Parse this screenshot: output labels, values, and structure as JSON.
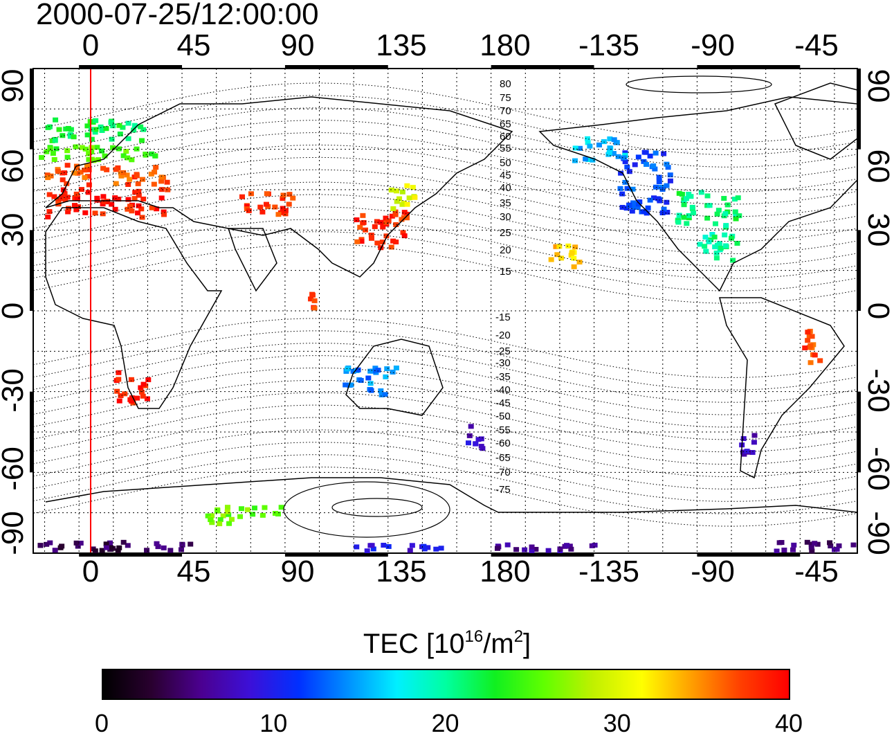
{
  "title": "2000-07-25/12:00:00",
  "top_longitude_ticks": [
    "0",
    "45",
    "90",
    "135",
    "180",
    "-135",
    "-90",
    "-45"
  ],
  "bottom_longitude_ticks": [
    "0",
    "45",
    "90",
    "135",
    "180",
    "-135",
    "-90",
    "-45"
  ],
  "latitude_ticks": [
    "90",
    "60",
    "30",
    "0",
    "-30",
    "-60",
    "-90"
  ],
  "contour_labels": [
    "80",
    "75",
    "70",
    "65",
    "60",
    "55",
    "50",
    "45",
    "40",
    "35",
    "30",
    "25",
    "20",
    "15",
    "-15",
    "-20",
    "-25",
    "-30",
    "-35",
    "-40",
    "-45",
    "-50",
    "-55",
    "-60",
    "-65",
    "-70",
    "-75"
  ],
  "colorbar": {
    "label_prefix": "TEC  [10",
    "label_exp1": "16",
    "label_mid": "/m",
    "label_exp2": "2",
    "label_suffix": "]",
    "min": 0,
    "max": 40,
    "ticks": [
      "0",
      "10",
      "20",
      "30",
      "40"
    ],
    "colors": [
      "#000000",
      "#2a0030",
      "#4b0090",
      "#3c10d8",
      "#0030ff",
      "#0090ff",
      "#00f0ff",
      "#00ffa0",
      "#10f020",
      "#60ff00",
      "#c0f000",
      "#ffff00",
      "#ffa000",
      "#ff4000",
      "#ff0000"
    ]
  },
  "map": {
    "lon_start": -20,
    "lon_span": 360,
    "lat_range": [
      -90,
      90
    ],
    "meridian_lon": 0,
    "meridian_color": "#ff0000"
  },
  "tec_regions": [
    {
      "lon": [
        -15,
        30
      ],
      "lat": [
        62,
        72
      ],
      "tec": 22
    },
    {
      "lon": [
        -18,
        35
      ],
      "lat": [
        55,
        62
      ],
      "tec": 25
    },
    {
      "lon": [
        -15,
        40
      ],
      "lat": [
        46,
        55
      ],
      "tec": 37
    },
    {
      "lon": [
        -15,
        40
      ],
      "lat": [
        34,
        46
      ],
      "tec": 39
    },
    {
      "lon": [
        70,
        95
      ],
      "lat": [
        35,
        45
      ],
      "tec": 38
    },
    {
      "lon": [
        120,
        145
      ],
      "lat": [
        22,
        38
      ],
      "tec": 38
    },
    {
      "lon": [
        135,
        148
      ],
      "lat": [
        36,
        48
      ],
      "tec": 30
    },
    {
      "lon": [
        100,
        105
      ],
      "lat": [
        0,
        8
      ],
      "tec": 38
    },
    {
      "lon": [
        15,
        32
      ],
      "lat": [
        -35,
        -22
      ],
      "tec": 39
    },
    {
      "lon": [
        -125,
        -100
      ],
      "lat": [
        35,
        60
      ],
      "tec": 12
    },
    {
      "lon": [
        -100,
        -70
      ],
      "lat": [
        30,
        45
      ],
      "tec": 21
    },
    {
      "lon": [
        -145,
        -120
      ],
      "lat": [
        55,
        65
      ],
      "tec": 16
    },
    {
      "lon": [
        -90,
        -70
      ],
      "lat": [
        18,
        30
      ],
      "tec": 20
    },
    {
      "lon": [
        -45,
        -35
      ],
      "lat": [
        -20,
        -5
      ],
      "tec": 37
    },
    {
      "lon": [
        115,
        140
      ],
      "lat": [
        -32,
        -20
      ],
      "tec": 14
    },
    {
      "lon": [
        168,
        178
      ],
      "lat": [
        -52,
        -42
      ],
      "tec": 8
    },
    {
      "lon": [
        -72,
        -62
      ],
      "lat": [
        -55,
        -45
      ],
      "tec": 7
    },
    {
      "lon": [
        -20,
        50
      ],
      "lat": [
        -90,
        -85
      ],
      "tec": 4
    },
    {
      "lon": [
        120,
        160
      ],
      "lat": [
        -90,
        -86
      ],
      "tec": 9
    },
    {
      "lon": [
        -180,
        -130
      ],
      "lat": [
        -90,
        -86
      ],
      "tec": 6
    },
    {
      "lon": [
        -60,
        -20
      ],
      "lat": [
        -90,
        -85
      ],
      "tec": 5
    },
    {
      "lon": [
        55,
        90
      ],
      "lat": [
        -80,
        -72
      ],
      "tec": 26
    },
    {
      "lon": [
        -155,
        -140
      ],
      "lat": [
        15,
        25
      ],
      "tec": 33
    }
  ]
}
